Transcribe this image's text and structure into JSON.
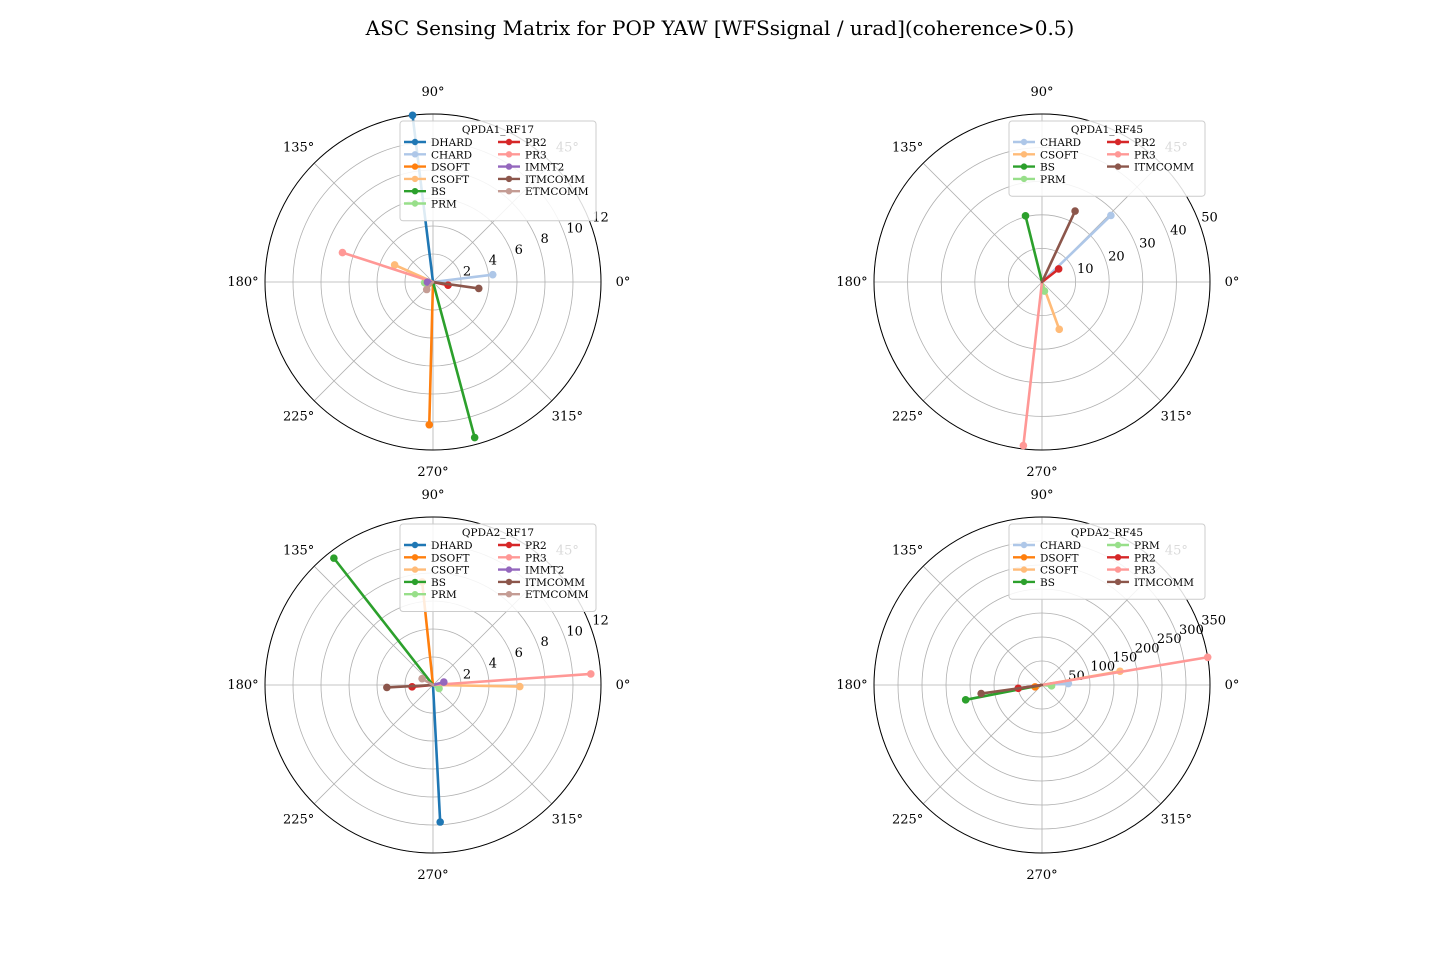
{
  "figure": {
    "title": "ASC Sensing Matrix for POP YAW [WFSsignal / urad](coherence>0.5)"
  },
  "angle_labels": [
    "0°",
    "45°",
    "90°",
    "135°",
    "180°",
    "225°",
    "270°",
    "315°"
  ],
  "chart_data": [
    {
      "type": "polar",
      "legend_title": "QPDA1_RF17",
      "legend_position": "top-right",
      "rlim": [
        0,
        12
      ],
      "rticks": [
        2,
        4,
        6,
        8,
        10,
        12
      ],
      "grid": true,
      "series": [
        {
          "name": "DHARD",
          "color": "#1f77b4",
          "theta_deg": 97,
          "r": 12.0
        },
        {
          "name": "CHARD",
          "color": "#aec7e8",
          "theta_deg": 7,
          "r": 4.3
        },
        {
          "name": "DSOFT",
          "color": "#ff7f0e",
          "theta_deg": 268.5,
          "r": 10.2
        },
        {
          "name": "CSOFT",
          "color": "#ffbb78",
          "theta_deg": 156,
          "r": 3.0
        },
        {
          "name": "BS",
          "color": "#2ca02c",
          "theta_deg": 285,
          "r": 11.5
        },
        {
          "name": "PRM",
          "color": "#98df8a",
          "theta_deg": 185,
          "r": 0.6
        },
        {
          "name": "PR2",
          "color": "#d62728",
          "theta_deg": 348,
          "r": 1.1
        },
        {
          "name": "PR3",
          "color": "#ff9896",
          "theta_deg": 162,
          "r": 6.8
        },
        {
          "name": "IMMT2",
          "color": "#9467bd",
          "theta_deg": 182,
          "r": 0.4
        },
        {
          "name": "ITMCOMM",
          "color": "#8c564b",
          "theta_deg": 352,
          "r": 3.3
        },
        {
          "name": "ETMCOMM",
          "color": "#c49c94",
          "theta_deg": 230,
          "r": 0.7
        }
      ],
      "legend_columns": [
        [
          "DHARD",
          "CHARD",
          "DSOFT",
          "CSOFT",
          "BS",
          "PRM"
        ],
        [
          "PR2",
          "PR3",
          "IMMT2",
          "ITMCOMM",
          "ETMCOMM"
        ]
      ]
    },
    {
      "type": "polar",
      "legend_title": "QPDA1_RF45",
      "legend_position": "top-right",
      "rlim": [
        0,
        50
      ],
      "rticks": [
        10,
        20,
        30,
        40,
        50
      ],
      "grid": true,
      "series": [
        {
          "name": "CHARD",
          "color": "#aec7e8",
          "theta_deg": 44,
          "r": 28.5
        },
        {
          "name": "CSOFT",
          "color": "#ffbb78",
          "theta_deg": 290,
          "r": 15.0
        },
        {
          "name": "BS",
          "color": "#2ca02c",
          "theta_deg": 104,
          "r": 20.3
        },
        {
          "name": "PRM",
          "color": "#98df8a",
          "theta_deg": 285,
          "r": 2.8
        },
        {
          "name": "PR2",
          "color": "#d62728",
          "theta_deg": 38,
          "r": 6.3
        },
        {
          "name": "PR3",
          "color": "#ff9896",
          "theta_deg": 263.5,
          "r": 49.0
        },
        {
          "name": "ITMCOMM",
          "color": "#8c564b",
          "theta_deg": 65,
          "r": 23.3
        }
      ],
      "legend_columns": [
        [
          "CHARD",
          "CSOFT",
          "BS",
          "PRM"
        ],
        [
          "PR2",
          "PR3",
          "ITMCOMM"
        ]
      ]
    },
    {
      "type": "polar",
      "legend_title": "QPDA2_RF17",
      "legend_position": "top-right",
      "rlim": [
        0,
        12
      ],
      "rticks": [
        2,
        4,
        6,
        8,
        10,
        12
      ],
      "grid": true,
      "series": [
        {
          "name": "DHARD",
          "color": "#1f77b4",
          "theta_deg": 273,
          "r": 9.8
        },
        {
          "name": "DSOFT",
          "color": "#ff7f0e",
          "theta_deg": 96,
          "r": 7.4
        },
        {
          "name": "CSOFT",
          "color": "#ffbb78",
          "theta_deg": 359,
          "r": 6.2
        },
        {
          "name": "BS",
          "color": "#2ca02c",
          "theta_deg": 128,
          "r": 11.5
        },
        {
          "name": "PRM",
          "color": "#98df8a",
          "theta_deg": 330,
          "r": 0.5
        },
        {
          "name": "PR2",
          "color": "#d62728",
          "theta_deg": 185,
          "r": 1.5
        },
        {
          "name": "PR3",
          "color": "#ff9896",
          "theta_deg": 4,
          "r": 11.3
        },
        {
          "name": "IMMT2",
          "color": "#9467bd",
          "theta_deg": 15,
          "r": 0.8
        },
        {
          "name": "ITMCOMM",
          "color": "#8c564b",
          "theta_deg": 183,
          "r": 3.3
        },
        {
          "name": "ETMCOMM",
          "color": "#c49c94",
          "theta_deg": 150,
          "r": 0.9
        }
      ],
      "legend_columns": [
        [
          "DHARD",
          "DSOFT",
          "CSOFT",
          "BS",
          "PRM"
        ],
        [
          "PR2",
          "PR3",
          "IMMT2",
          "ITMCOMM",
          "ETMCOMM"
        ]
      ]
    },
    {
      "type": "polar",
      "legend_title": "QPDA2_RF45",
      "legend_position": "top-right",
      "rlim": [
        0,
        350
      ],
      "rticks": [
        50,
        100,
        150,
        200,
        250,
        300,
        350
      ],
      "grid": true,
      "series": [
        {
          "name": "CHARD",
          "color": "#aec7e8",
          "theta_deg": 3,
          "r": 55
        },
        {
          "name": "DSOFT",
          "color": "#ff7f0e",
          "theta_deg": 195,
          "r": 15
        },
        {
          "name": "CSOFT",
          "color": "#ffbb78",
          "theta_deg": 10,
          "r": 165
        },
        {
          "name": "BS",
          "color": "#2ca02c",
          "theta_deg": 191,
          "r": 162
        },
        {
          "name": "PRM",
          "color": "#98df8a",
          "theta_deg": 355,
          "r": 20
        },
        {
          "name": "PR2",
          "color": "#d62728",
          "theta_deg": 188,
          "r": 50
        },
        {
          "name": "PR3",
          "color": "#ff9896",
          "theta_deg": 9.5,
          "r": 350
        },
        {
          "name": "ITMCOMM",
          "color": "#8c564b",
          "theta_deg": 188,
          "r": 128
        }
      ],
      "legend_columns": [
        [
          "CHARD",
          "DSOFT",
          "CSOFT",
          "BS"
        ],
        [
          "PRM",
          "PR2",
          "PR3",
          "ITMCOMM"
        ]
      ]
    }
  ]
}
